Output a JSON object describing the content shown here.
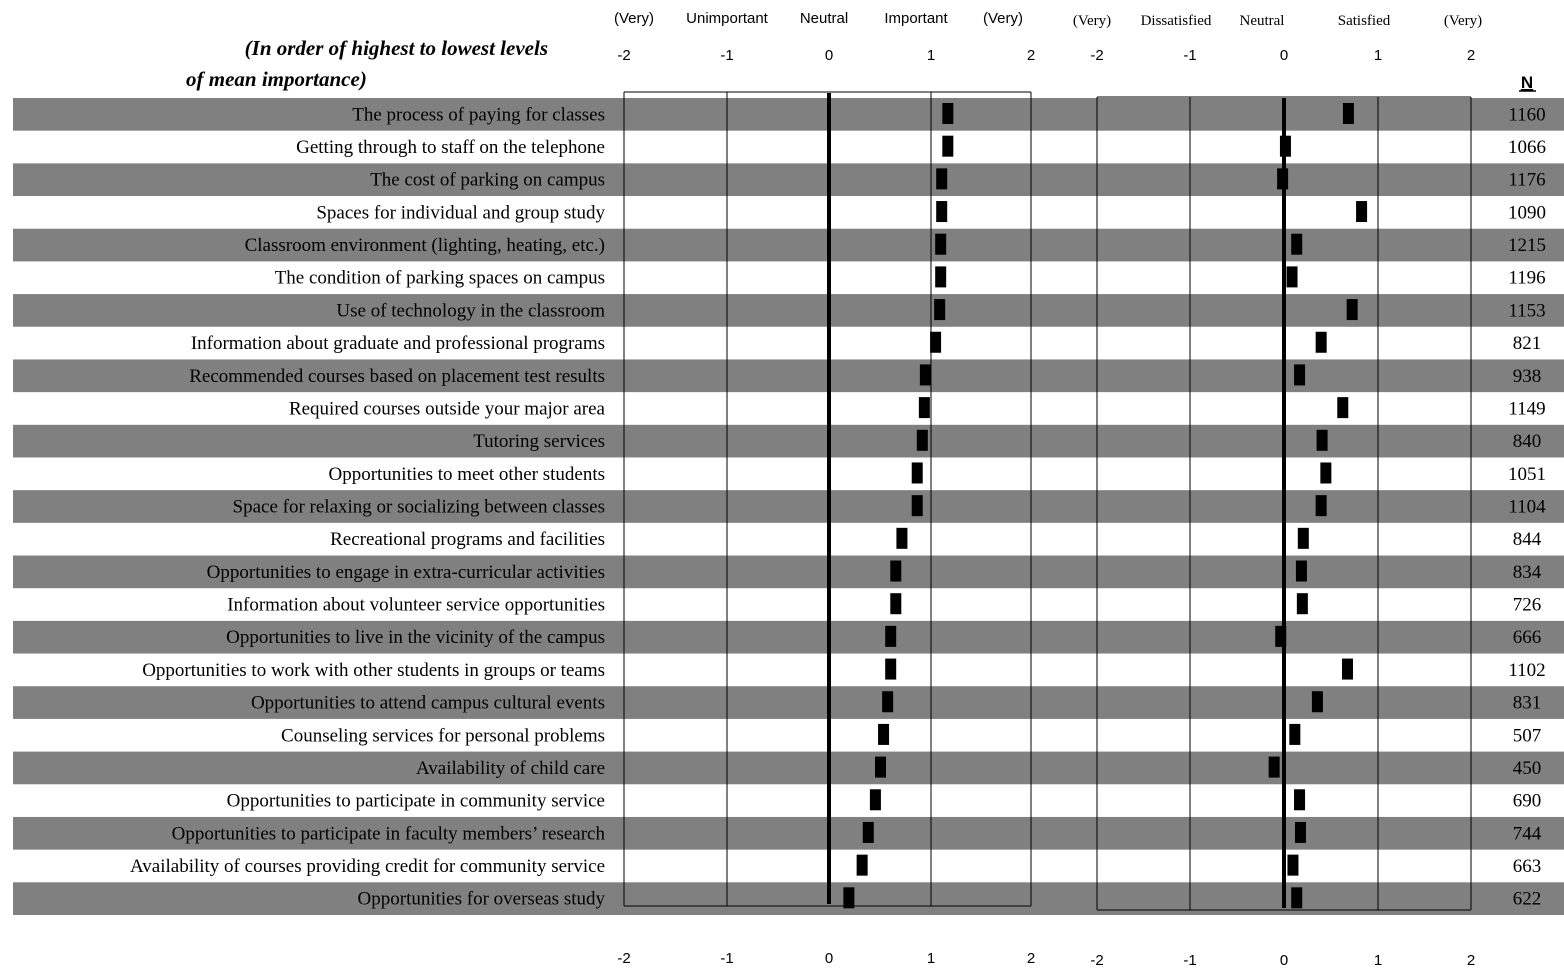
{
  "subtitle_line1": "(In order of highest to lowest levels",
  "subtitle_line2": "of mean importance)",
  "n_header": "N",
  "importance_panel": {
    "scale_words": [
      "(Very)",
      "Unimportant",
      "Neutral",
      "Important",
      "(Very)"
    ],
    "ticks": [
      -2,
      -1,
      0,
      1,
      2
    ],
    "xlim": [
      -2,
      2
    ]
  },
  "satisfaction_panel": {
    "scale_words": [
      "(Very)",
      "Dissatisfied",
      "Neutral",
      "Satisfied",
      "(Very)"
    ],
    "ticks": [
      -2,
      -1,
      0,
      1,
      2
    ],
    "xlim": [
      -2,
      2
    ]
  },
  "chart_data": {
    "type": "dot",
    "categories": [
      "The process of paying for classes",
      "Getting through to staff on the telephone",
      "The cost of parking on campus",
      "Spaces for individual and group study",
      "Classroom environment (lighting, heating, etc.)",
      "The condition of parking spaces on campus",
      "Use of technology in the classroom",
      "Information about graduate and professional programs",
      "Recommended courses based on placement test results",
      "Required courses outside your major area",
      "Tutoring services",
      "Opportunities to meet other students",
      "Space for relaxing or socializing between classes",
      "Recreational programs and facilities",
      "Opportunities to engage in extra-curricular activities",
      "Information about volunteer service opportunities",
      "Opportunities to live in the vicinity of the campus",
      "Opportunities to work with other students in groups or teams",
      "Opportunities to attend campus cultural events",
      "Counseling services for personal problems",
      "Availability of child care",
      "Opportunities to participate in community service",
      "Opportunities to participate in faculty members’ research",
      "Availability of courses providing credit for community service",
      "Opportunities for overseas study"
    ],
    "series": [
      {
        "name": "Importance",
        "values": [
          1.16,
          1.16,
          1.1,
          1.1,
          1.09,
          1.09,
          1.08,
          1.04,
          0.94,
          0.93,
          0.91,
          0.86,
          0.86,
          0.71,
          0.65,
          0.65,
          0.6,
          0.6,
          0.57,
          0.53,
          0.5,
          0.45,
          0.38,
          0.32,
          0.19
        ]
      },
      {
        "name": "Satisfaction",
        "values": [
          0.68,
          0.01,
          -0.02,
          0.82,
          0.13,
          0.08,
          0.72,
          0.39,
          0.16,
          0.62,
          0.4,
          0.44,
          0.39,
          0.2,
          0.18,
          0.19,
          -0.04,
          0.67,
          0.35,
          0.11,
          -0.11,
          0.16,
          0.17,
          0.09,
          0.13
        ]
      }
    ],
    "n": [
      1160,
      1066,
      1176,
      1090,
      1215,
      1196,
      1153,
      821,
      938,
      1149,
      840,
      1051,
      1104,
      844,
      834,
      726,
      666,
      1102,
      831,
      507,
      450,
      690,
      744,
      663,
      622
    ],
    "bottom_ticks": [
      -2,
      -1,
      0,
      1,
      2
    ],
    "grid": true
  }
}
